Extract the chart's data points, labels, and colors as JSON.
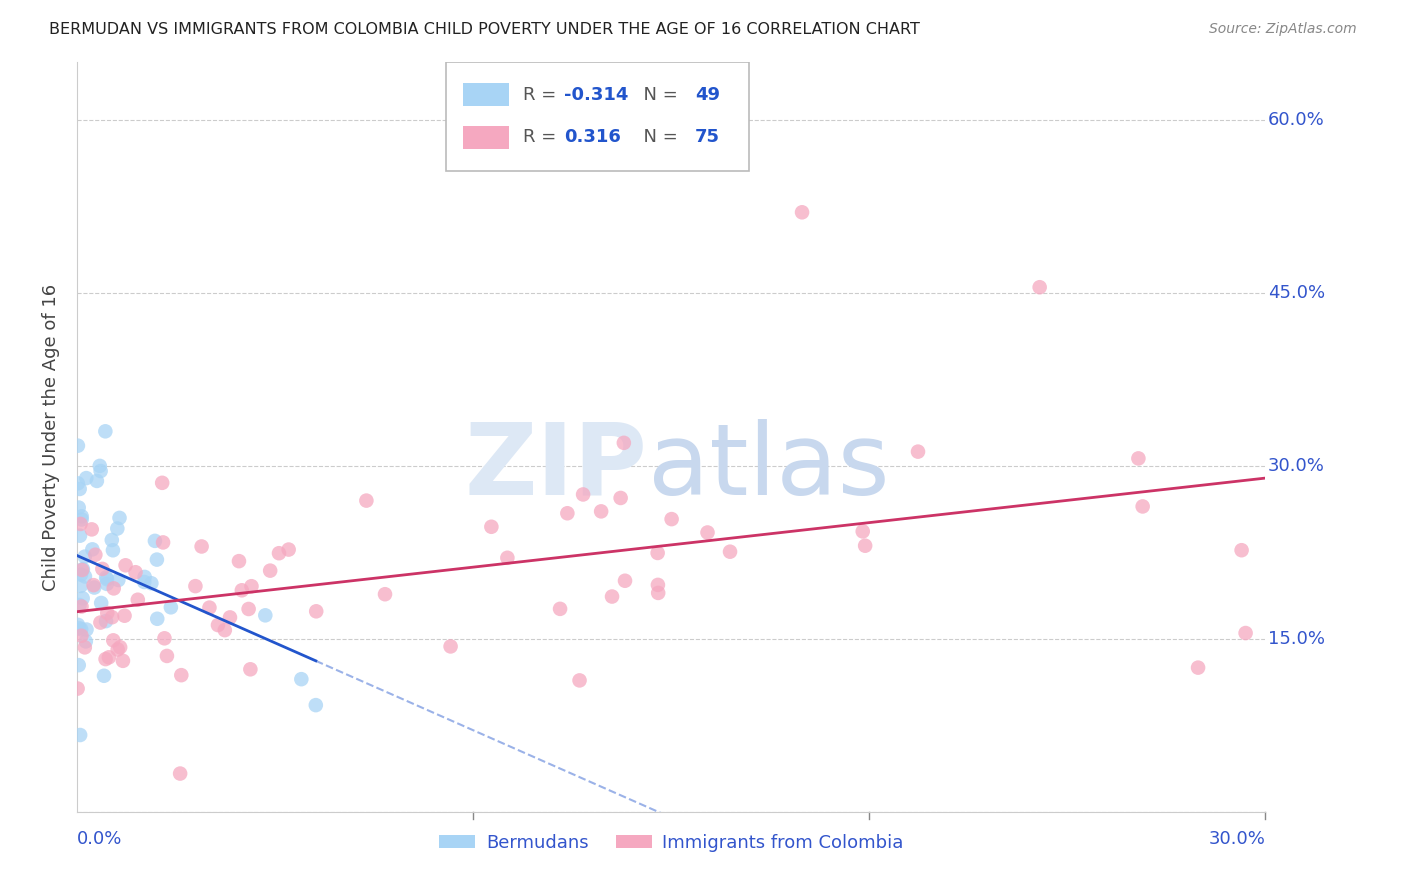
{
  "title": "BERMUDAN VS IMMIGRANTS FROM COLOMBIA CHILD POVERTY UNDER THE AGE OF 16 CORRELATION CHART",
  "source": "Source: ZipAtlas.com",
  "ylabel": "Child Poverty Under the Age of 16",
  "legend_r_blue": "-0.314",
  "legend_n_blue": "49",
  "legend_r_pink": "0.316",
  "legend_n_pink": "75",
  "blue_color": "#a8d4f5",
  "pink_color": "#f5a8c0",
  "blue_line_color": "#2255cc",
  "pink_line_color": "#cc3366",
  "label_color": "#3355cc",
  "ytick_positions": [
    0.0,
    0.15,
    0.3,
    0.45,
    0.6
  ],
  "ytick_labels": [
    "",
    "15.0%",
    "30.0%",
    "45.0%",
    "60.0%"
  ],
  "xlim": [
    0.0,
    0.3
  ],
  "ylim": [
    0.0,
    0.65
  ]
}
